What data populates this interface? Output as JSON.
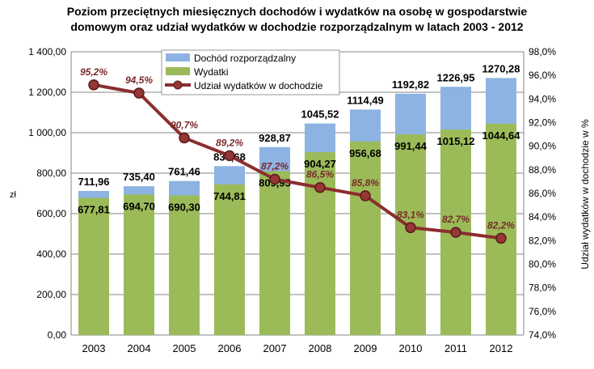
{
  "chart_data": {
    "type": "bar",
    "title_line1": "Poziom przeciętnych miesięcznych dochodów i wydatków na osobę w gospodarstwie",
    "title_line2": "domowym oraz udział wydatków w dochodzie rozporządzalnym w latach 2003 - 2012",
    "categories": [
      "2003",
      "2004",
      "2005",
      "2006",
      "2007",
      "2008",
      "2009",
      "2010",
      "2011",
      "2012"
    ],
    "series": [
      {
        "name": "Dochód rozporządzalny",
        "type": "bar",
        "color": "#8db3e2",
        "values": [
          711.96,
          735.4,
          761.46,
          834.68,
          928.87,
          1045.52,
          1114.49,
          1192.82,
          1226.95,
          1270.28
        ],
        "labels": [
          "711,96",
          "735,40",
          "761,46",
          "834,68",
          "928,87",
          "1045,52",
          "1114,49",
          "1192,82",
          "1226,95",
          "1270,28"
        ]
      },
      {
        "name": "Wydatki",
        "type": "bar",
        "color": "#9bbb59",
        "values": [
          677.81,
          694.7,
          690.3,
          744.81,
          809.95,
          904.27,
          956.68,
          991.44,
          1015.12,
          1044.64
        ],
        "labels": [
          "677,81",
          "694,70",
          "690,30",
          "744,81",
          "809,95",
          "904,27",
          "956,68",
          "991,44",
          "1015,12",
          "1044,64"
        ]
      },
      {
        "name": "Udział wydatków w dochodzie",
        "type": "line",
        "axis": "right",
        "color": "#8b2e2e",
        "values": [
          95.2,
          94.5,
          90.7,
          89.2,
          87.2,
          86.5,
          85.8,
          83.1,
          82.7,
          82.2
        ],
        "labels": [
          "95,2%",
          "94,5%",
          "90,7%",
          "89,2%",
          "87,2%",
          "86,5%",
          "85,8%",
          "83,1%",
          "82,7%",
          "82,2%"
        ]
      }
    ],
    "ylabel": "zł",
    "y2label": "Udział wydatków w dochodzie w %",
    "ylim": [
      0,
      1400
    ],
    "y2lim": [
      74,
      98
    ],
    "yticks": [
      "0,00",
      "200,00",
      "400,00",
      "600,00",
      "800,00",
      "1 000,00",
      "1 200,00",
      "1 400,00"
    ],
    "y2ticks": [
      "74,0%",
      "76,0%",
      "78,0%",
      "80,0%",
      "82,0%",
      "84,0%",
      "86,0%",
      "88,0%",
      "90,0%",
      "92,0%",
      "94,0%",
      "96,0%",
      "98,0%"
    ],
    "grid": true,
    "legend": "top-left"
  }
}
